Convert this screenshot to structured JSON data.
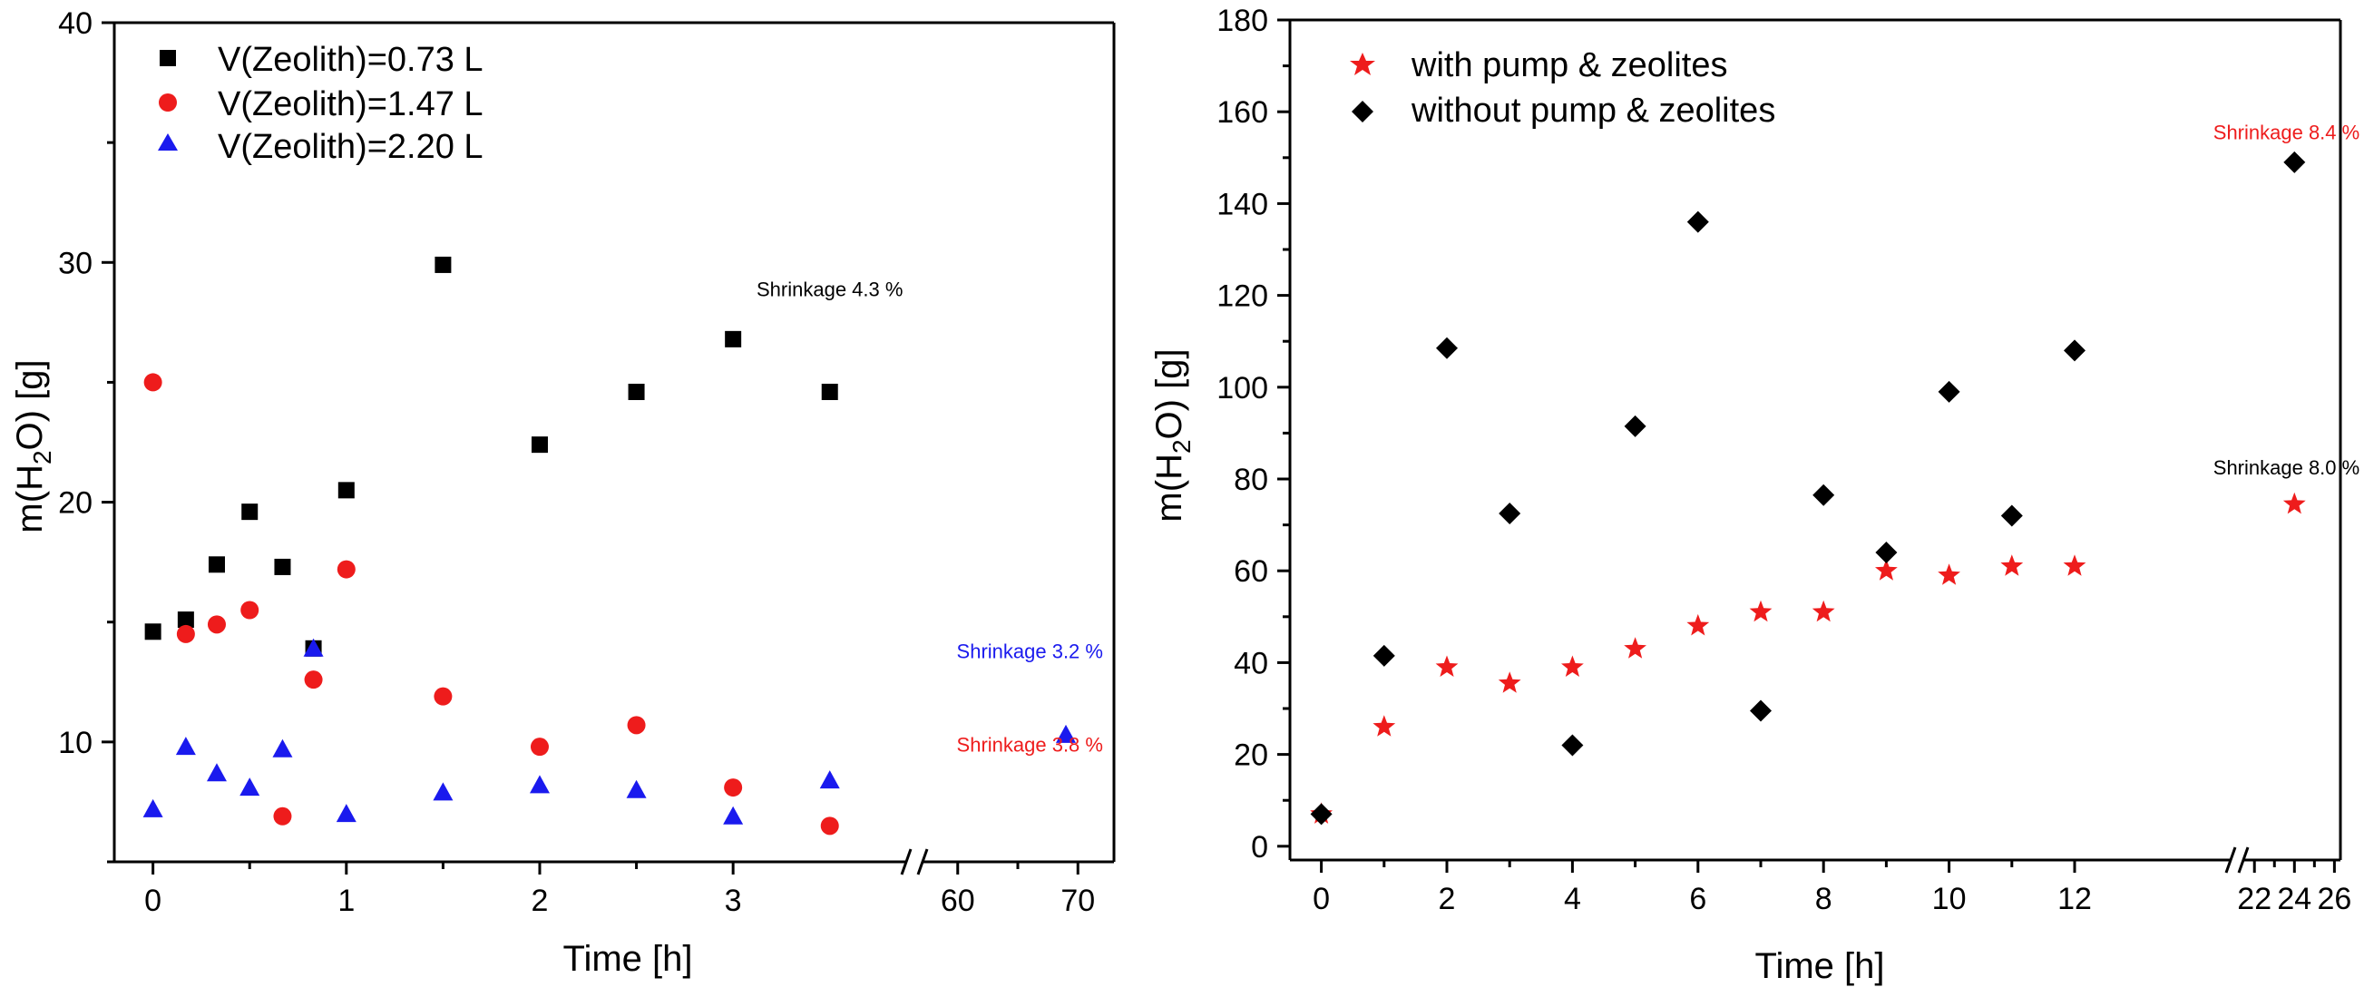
{
  "colors": {
    "black": "#000000",
    "red": "#ee1c1c",
    "blue": "#1a1aee"
  },
  "chart_data": [
    {
      "type": "scatter",
      "title": "",
      "xlabel": "Time [h]",
      "ylabel": "m(H2O) [g]",
      "ylabel_parts": {
        "pre": "m(H",
        "sub": "2",
        "post": "O) [g]"
      },
      "x_axis": {
        "segments": [
          {
            "range": [
              -0.2,
              3.9
            ],
            "ticks": [
              0,
              1,
              2,
              3
            ],
            "tick_labels": [
              "0",
              "1",
              "2",
              "3"
            ]
          },
          {
            "range": [
              57,
              73
            ],
            "ticks": [
              60,
              70
            ],
            "tick_labels": [
              "60",
              "70"
            ]
          }
        ],
        "break": true
      },
      "y_axis": {
        "range": [
          5,
          40
        ],
        "ticks": [
          10,
          20,
          30,
          40
        ],
        "tick_labels": [
          "10",
          "20",
          "30",
          "40"
        ]
      },
      "legend_position": "top-left",
      "series": [
        {
          "name": "V(Zeolith)=0.73 L",
          "marker": "square",
          "color": "#000000",
          "points": [
            [
              0,
              14.6
            ],
            [
              0.17,
              15.1
            ],
            [
              0.33,
              17.4
            ],
            [
              0.5,
              19.6
            ],
            [
              0.67,
              17.3
            ],
            [
              0.83,
              13.9
            ],
            [
              1,
              20.5
            ],
            [
              1.5,
              29.9
            ],
            [
              2,
              22.4
            ],
            [
              2.5,
              24.6
            ],
            [
              3,
              26.8
            ],
            [
              3.5,
              24.6
            ]
          ]
        },
        {
          "name": "V(Zeolith)=1.47 L",
          "marker": "circle",
          "color": "#ee1c1c",
          "points": [
            [
              0,
              25.0
            ],
            [
              0.17,
              14.5
            ],
            [
              0.33,
              14.9
            ],
            [
              0.5,
              15.5
            ],
            [
              0.67,
              6.9
            ],
            [
              0.83,
              12.6
            ],
            [
              1,
              17.2
            ],
            [
              1.5,
              11.9
            ],
            [
              2,
              9.8
            ],
            [
              2.5,
              10.7
            ],
            [
              3,
              8.1
            ],
            [
              3.5,
              6.5
            ]
          ]
        },
        {
          "name": "V(Zeolith)=2.20 L",
          "marker": "triangle",
          "color": "#1a1aee",
          "points": [
            [
              0,
              7.2
            ],
            [
              0.17,
              9.8
            ],
            [
              0.33,
              8.7
            ],
            [
              0.5,
              8.1
            ],
            [
              0.67,
              9.7
            ],
            [
              0.83,
              13.9
            ],
            [
              1,
              7.0
            ],
            [
              1.5,
              7.9
            ],
            [
              2,
              8.2
            ],
            [
              2.5,
              8.0
            ],
            [
              3,
              6.9
            ],
            [
              3.5,
              8.4
            ],
            [
              69,
              10.3
            ]
          ]
        }
      ],
      "annotations": [
        {
          "text": "Shrinkage 4.3 %",
          "color": "#000000",
          "at": [
            3.5,
            28.6
          ]
        },
        {
          "text": "Shrinkage 3.2 %",
          "color": "#1a1aee",
          "at": [
            66,
            13.5
          ]
        },
        {
          "text": "Shrinkage 3.8 %",
          "color": "#ee1c1c",
          "at": [
            66,
            9.6
          ]
        }
      ]
    },
    {
      "type": "scatter",
      "title": "",
      "xlabel": "Time [h]",
      "ylabel": "m(H2O) [g]",
      "ylabel_parts": {
        "pre": "m(H",
        "sub": "2",
        "post": "O) [g]"
      },
      "x_axis": {
        "segments": [
          {
            "range": [
              -0.5,
              14.5
            ],
            "ticks": [
              0,
              2,
              4,
              6,
              8,
              10,
              12
            ],
            "tick_labels": [
              "0",
              "2",
              "4",
              "6",
              "8",
              "10",
              "12"
            ]
          },
          {
            "range": [
              21.4,
              26.3
            ],
            "ticks": [
              22,
              24,
              26
            ],
            "tick_labels": [
              "22",
              "24",
              "26"
            ]
          }
        ],
        "break": true
      },
      "y_axis": {
        "range": [
          -3,
          180
        ],
        "ticks": [
          0,
          20,
          40,
          60,
          80,
          100,
          120,
          140,
          160,
          180
        ],
        "tick_labels": [
          "0",
          "20",
          "40",
          "60",
          "80",
          "100",
          "120",
          "140",
          "160",
          "180"
        ]
      },
      "legend_position": "top-left",
      "series": [
        {
          "name": "with pump & zeolites",
          "marker": "star",
          "color": "#ee1c1c",
          "points": [
            [
              0,
              7
            ],
            [
              1,
              26
            ],
            [
              2,
              39
            ],
            [
              3,
              35.5
            ],
            [
              4,
              39
            ],
            [
              5,
              43
            ],
            [
              6,
              48
            ],
            [
              7,
              51
            ],
            [
              8,
              51
            ],
            [
              9,
              60
            ],
            [
              10,
              59
            ],
            [
              11,
              61
            ],
            [
              12,
              61
            ],
            [
              24,
              74.5
            ]
          ]
        },
        {
          "name": "without pump & zeolites",
          "marker": "diamond",
          "color": "#000000",
          "points": [
            [
              0,
              7
            ],
            [
              1,
              41.5
            ],
            [
              2,
              108.5
            ],
            [
              3,
              72.5
            ],
            [
              4,
              22
            ],
            [
              5,
              91.5
            ],
            [
              6,
              136
            ],
            [
              7,
              29.5
            ],
            [
              8,
              76.5
            ],
            [
              9,
              64
            ],
            [
              10,
              99
            ],
            [
              11,
              72
            ],
            [
              12,
              108
            ],
            [
              24,
              149
            ]
          ]
        }
      ],
      "annotations": [
        {
          "text": "Shrinkage 8.4 %",
          "color": "#ee1c1c",
          "at": [
            23.6,
            154
          ]
        },
        {
          "text": "Shrinkage 8.0 %",
          "color": "#000000",
          "at": [
            23.6,
            81
          ]
        }
      ]
    }
  ]
}
